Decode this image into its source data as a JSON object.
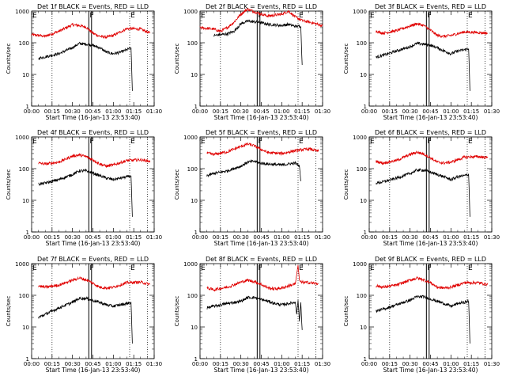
{
  "chart_data": [
    {
      "type": "line",
      "title": "Det 1f BLACK = Events, RED = LLD",
      "xlabel": "Start Time (16-Jan-13 23:53:40)",
      "ylabel": "Counts/sec",
      "scale": "log",
      "xlim": [
        "00:00",
        "01:30"
      ],
      "ylim": [
        1,
        1000
      ],
      "xticks": [
        "00:00",
        "00:15",
        "00:30",
        "00:45",
        "01:00",
        "01:15",
        "01:30"
      ],
      "yticks": [
        "1",
        "10",
        "100",
        "1000"
      ],
      "markers": [
        {
          "label": "E",
          "x": "00:00"
        },
        {
          "label": "F",
          "x": "00:42"
        },
        {
          "label": "E",
          "x": "01:12"
        }
      ],
      "dotted_lines": [
        "00:15",
        "01:12",
        "01:25"
      ],
      "solid_lines": [
        "00:42",
        "00:44"
      ],
      "series": [
        {
          "color": "red",
          "x": [
            "00:00",
            "00:10",
            "00:20",
            "00:30",
            "00:35",
            "00:40",
            "00:45",
            "00:50",
            "00:55",
            "01:00",
            "01:10",
            "01:20",
            "01:27"
          ],
          "y": [
            180,
            160,
            230,
            370,
            350,
            310,
            200,
            160,
            150,
            170,
            280,
            270,
            200
          ]
        },
        {
          "color": "black",
          "x": [
            "00:05",
            "00:10",
            "00:20",
            "00:30",
            "00:35",
            "00:40",
            "00:44",
            "00:50",
            "00:55",
            "01:00",
            "01:05",
            "01:10",
            "01:13",
            "01:14"
          ],
          "y": [
            32,
            36,
            45,
            70,
            95,
            90,
            85,
            70,
            50,
            45,
            50,
            60,
            70,
            3
          ]
        }
      ]
    },
    {
      "type": "line",
      "title": "Det 2f BLACK = Events, RED = LLD",
      "xlabel": "Start Time (16-Jan-13 23:53:40)",
      "ylabel": "Counts/sec",
      "scale": "log",
      "xlim": [
        "00:00",
        "01:30"
      ],
      "ylim": [
        1,
        1000
      ],
      "xticks": [
        "00:00",
        "00:15",
        "00:30",
        "00:45",
        "01:00",
        "01:15",
        "01:30"
      ],
      "yticks": [
        "1",
        "10",
        "100",
        "1000"
      ],
      "markers": [
        {
          "label": "E",
          "x": "00:00"
        },
        {
          "label": "F",
          "x": "00:42"
        },
        {
          "label": "E",
          "x": "01:12"
        }
      ],
      "dotted_lines": [
        "00:15",
        "01:12",
        "01:25"
      ],
      "solid_lines": [
        "00:42",
        "00:44"
      ],
      "series": [
        {
          "color": "red",
          "x": [
            "00:00",
            "00:10",
            "00:15",
            "00:20",
            "00:25",
            "00:30",
            "00:35",
            "00:40",
            "00:45",
            "00:50",
            "01:00",
            "01:05",
            "01:10",
            "01:15",
            "01:20",
            "01:25",
            "01:30"
          ],
          "y": [
            300,
            270,
            230,
            300,
            450,
            800,
            1150,
            950,
            800,
            700,
            800,
            1000,
            650,
            500,
            450,
            400,
            340
          ]
        },
        {
          "color": "black",
          "x": [
            "00:10",
            "00:15",
            "00:20",
            "00:25",
            "00:30",
            "00:35",
            "00:40",
            "00:45",
            "00:50",
            "01:00",
            "01:05",
            "01:10",
            "01:14",
            "01:15"
          ],
          "y": [
            170,
            180,
            190,
            230,
            400,
            480,
            460,
            430,
            380,
            350,
            380,
            330,
            330,
            20
          ]
        }
      ]
    },
    {
      "type": "line",
      "title": "Det 3f BLACK = Events, RED = LLD",
      "xlabel": "Start Time (16-Jan-13 23:53:40)",
      "ylabel": "Counts/sec",
      "scale": "log",
      "xlim": [
        "00:00",
        "01:30"
      ],
      "ylim": [
        1,
        1000
      ],
      "xticks": [
        "00:00",
        "00:15",
        "00:30",
        "00:45",
        "01:00",
        "01:15",
        "01:30"
      ],
      "yticks": [
        "1",
        "10",
        "100",
        "1000"
      ],
      "markers": [
        {
          "label": "E",
          "x": "00:00"
        },
        {
          "label": "F",
          "x": "00:42"
        },
        {
          "label": "E",
          "x": "01:12"
        }
      ],
      "dotted_lines": [
        "00:15",
        "01:12",
        "01:25"
      ],
      "solid_lines": [
        "00:42",
        "00:44"
      ],
      "series": [
        {
          "color": "red",
          "x": [
            "00:05",
            "00:10",
            "00:20",
            "00:30",
            "00:35",
            "00:40",
            "00:45",
            "00:50",
            "00:55",
            "01:00",
            "01:10",
            "01:20",
            "01:27"
          ],
          "y": [
            230,
            200,
            240,
            340,
            400,
            350,
            250,
            170,
            160,
            170,
            220,
            210,
            200
          ]
        },
        {
          "color": "black",
          "x": [
            "00:05",
            "00:10",
            "00:20",
            "00:30",
            "00:35",
            "00:40",
            "00:44",
            "00:50",
            "00:55",
            "01:00",
            "01:05",
            "01:10",
            "01:13",
            "01:14"
          ],
          "y": [
            35,
            40,
            55,
            75,
            95,
            90,
            85,
            70,
            55,
            45,
            55,
            60,
            65,
            3
          ]
        }
      ]
    },
    {
      "type": "line",
      "title": "Det 4f BLACK = Events, RED = LLD",
      "xlabel": "Start Time (16-Jan-13 23:53:40)",
      "ylabel": "Counts/sec",
      "scale": "log",
      "xlim": [
        "00:00",
        "01:30"
      ],
      "ylim": [
        1,
        1000
      ],
      "xticks": [
        "00:00",
        "00:15",
        "00:30",
        "00:45",
        "01:00",
        "01:15",
        "01:30"
      ],
      "yticks": [
        "1",
        "10",
        "100",
        "1000"
      ],
      "markers": [
        {
          "label": "E",
          "x": "00:00"
        },
        {
          "label": "F",
          "x": "00:42"
        },
        {
          "label": "E",
          "x": "01:12"
        }
      ],
      "dotted_lines": [
        "00:15",
        "01:12",
        "01:25"
      ],
      "solid_lines": [
        "00:42",
        "00:44"
      ],
      "series": [
        {
          "color": "red",
          "x": [
            "00:05",
            "00:10",
            "00:20",
            "00:30",
            "00:35",
            "00:40",
            "00:45",
            "00:50",
            "00:55",
            "01:00",
            "01:10",
            "01:20",
            "01:27"
          ],
          "y": [
            150,
            140,
            160,
            250,
            270,
            240,
            190,
            140,
            120,
            130,
            180,
            190,
            170
          ]
        },
        {
          "color": "black",
          "x": [
            "00:05",
            "00:10",
            "00:20",
            "00:30",
            "00:35",
            "00:40",
            "00:44",
            "00:50",
            "00:55",
            "01:00",
            "01:05",
            "01:10",
            "01:13",
            "01:14"
          ],
          "y": [
            32,
            35,
            45,
            65,
            85,
            85,
            75,
            60,
            50,
            45,
            50,
            55,
            60,
            3
          ]
        }
      ]
    },
    {
      "type": "line",
      "title": "Det 5f BLACK = Events, RED = LLD",
      "xlabel": "Start Time (16-Jan-13 23:53:40)",
      "ylabel": "Counts/sec",
      "scale": "log",
      "xlim": [
        "00:00",
        "01:30"
      ],
      "ylim": [
        1,
        1000
      ],
      "xticks": [
        "00:00",
        "00:15",
        "00:30",
        "00:45",
        "01:00",
        "01:15",
        "01:30"
      ],
      "yticks": [
        "1",
        "10",
        "100",
        "1000"
      ],
      "markers": [
        {
          "label": "E",
          "x": "00:00"
        },
        {
          "label": "F",
          "x": "00:42"
        },
        {
          "label": "E",
          "x": "01:12"
        }
      ],
      "dotted_lines": [
        "00:15",
        "01:12",
        "01:25"
      ],
      "solid_lines": [
        "00:42",
        "00:44"
      ],
      "series": [
        {
          "color": "red",
          "x": [
            "00:05",
            "00:10",
            "00:20",
            "00:30",
            "00:35",
            "00:40",
            "00:45",
            "00:50",
            "01:00",
            "01:10",
            "01:20",
            "01:27"
          ],
          "y": [
            310,
            280,
            340,
            500,
            600,
            520,
            400,
            320,
            300,
            370,
            420,
            350
          ]
        },
        {
          "color": "black",
          "x": [
            "00:05",
            "00:10",
            "00:20",
            "00:30",
            "00:35",
            "00:40",
            "00:44",
            "00:50",
            "01:00",
            "01:05",
            "01:10",
            "01:13",
            "01:14"
          ],
          "y": [
            60,
            70,
            85,
            120,
            160,
            170,
            150,
            140,
            130,
            140,
            150,
            120,
            40
          ]
        }
      ]
    },
    {
      "type": "line",
      "title": "Det 6f BLACK = Events, RED = LLD",
      "xlabel": "Start Time (16-Jan-13 23:53:40)",
      "ylabel": "Counts/sec",
      "scale": "log",
      "xlim": [
        "00:00",
        "01:30"
      ],
      "ylim": [
        1,
        1000
      ],
      "xticks": [
        "00:00",
        "00:15",
        "00:30",
        "00:45",
        "01:00",
        "01:15",
        "01:30"
      ],
      "yticks": [
        "1",
        "10",
        "100",
        "1000"
      ],
      "markers": [
        {
          "label": "E",
          "x": "00:00"
        },
        {
          "label": "F",
          "x": "00:42"
        },
        {
          "label": "E",
          "x": "01:12"
        }
      ],
      "dotted_lines": [
        "00:15",
        "01:12",
        "01:25"
      ],
      "solid_lines": [
        "00:42",
        "00:44"
      ],
      "series": [
        {
          "color": "red",
          "x": [
            "00:05",
            "00:10",
            "00:20",
            "00:30",
            "00:35",
            "00:40",
            "00:45",
            "00:50",
            "00:55",
            "01:00",
            "01:10",
            "01:20",
            "01:27"
          ],
          "y": [
            170,
            150,
            180,
            280,
            330,
            290,
            220,
            160,
            150,
            160,
            230,
            240,
            220
          ]
        },
        {
          "color": "black",
          "x": [
            "00:05",
            "00:10",
            "00:20",
            "00:30",
            "00:35",
            "00:40",
            "00:44",
            "00:50",
            "00:55",
            "01:00",
            "01:05",
            "01:10",
            "01:13",
            "01:14"
          ],
          "y": [
            35,
            38,
            50,
            70,
            90,
            90,
            80,
            65,
            55,
            45,
            55,
            60,
            65,
            3
          ]
        }
      ]
    },
    {
      "type": "line",
      "title": "Det 7f BLACK = Events, RED = LLD",
      "xlabel": "Start Time (16-Jan-13 23:53:40)",
      "ylabel": "Counts/sec",
      "scale": "log",
      "xlim": [
        "00:00",
        "01:30"
      ],
      "ylim": [
        1,
        1000
      ],
      "xticks": [
        "00:00",
        "00:15",
        "00:30",
        "00:45",
        "01:00",
        "01:15",
        "01:30"
      ],
      "yticks": [
        "1",
        "10",
        "100",
        "1000"
      ],
      "markers": [
        {
          "label": "E",
          "x": "00:00"
        },
        {
          "label": "F",
          "x": "00:42"
        },
        {
          "label": "E",
          "x": "01:12"
        }
      ],
      "dotted_lines": [
        "00:15",
        "01:12",
        "01:25"
      ],
      "solid_lines": [
        "00:42",
        "00:44"
      ],
      "series": [
        {
          "color": "red",
          "x": [
            "00:05",
            "00:10",
            "00:20",
            "00:30",
            "00:35",
            "00:40",
            "00:45",
            "00:50",
            "00:55",
            "01:00",
            "01:10",
            "01:20",
            "01:27"
          ],
          "y": [
            200,
            180,
            210,
            300,
            350,
            310,
            240,
            180,
            170,
            180,
            250,
            260,
            220
          ]
        },
        {
          "color": "black",
          "x": [
            "00:05",
            "00:10",
            "00:20",
            "00:30",
            "00:35",
            "00:40",
            "00:44",
            "00:50",
            "00:55",
            "01:00",
            "01:05",
            "01:10",
            "01:13",
            "01:14"
          ],
          "y": [
            20,
            25,
            40,
            60,
            80,
            80,
            70,
            60,
            50,
            45,
            50,
            55,
            60,
            3
          ]
        }
      ]
    },
    {
      "type": "line",
      "title": "Det 8f BLACK = Events, RED = LLD",
      "xlabel": "Start Time (16-Jan-13 23:53:40)",
      "ylabel": "Counts/sec",
      "scale": "log",
      "xlim": [
        "00:00",
        "01:30"
      ],
      "ylim": [
        1,
        1000
      ],
      "xticks": [
        "00:00",
        "00:15",
        "00:30",
        "00:45",
        "01:00",
        "01:15",
        "01:30"
      ],
      "yticks": [
        "1",
        "10",
        "100",
        "1000"
      ],
      "markers": [
        {
          "label": "E",
          "x": "00:00"
        },
        {
          "label": "F",
          "x": "00:42"
        },
        {
          "label": "E",
          "x": "01:12"
        }
      ],
      "dotted_lines": [
        "00:15",
        "01:12",
        "01:25"
      ],
      "solid_lines": [
        "00:42",
        "00:44"
      ],
      "series": [
        {
          "color": "red",
          "x": [
            "00:05",
            "00:10",
            "00:20",
            "00:30",
            "00:35",
            "00:40",
            "00:45",
            "00:50",
            "00:55",
            "01:00",
            "01:10",
            "01:12",
            "01:13",
            "01:14",
            "01:20",
            "01:27"
          ],
          "y": [
            170,
            150,
            180,
            260,
            300,
            270,
            220,
            170,
            160,
            170,
            230,
            900,
            300,
            260,
            250,
            230
          ]
        },
        {
          "color": "black",
          "x": [
            "00:05",
            "00:10",
            "00:20",
            "00:30",
            "00:35",
            "00:40",
            "00:44",
            "00:50",
            "00:55",
            "01:00",
            "01:05",
            "01:10",
            "01:11",
            "01:12",
            "01:13",
            "01:14",
            "01:15"
          ],
          "y": [
            40,
            45,
            55,
            65,
            85,
            85,
            75,
            65,
            55,
            50,
            55,
            60,
            25,
            70,
            15,
            60,
            8
          ]
        }
      ]
    },
    {
      "type": "line",
      "title": "Det 9f BLACK = Events, RED = LLD",
      "xlabel": "Start Time (16-Jan-13 23:53:40)",
      "ylabel": "Counts/sec",
      "scale": "log",
      "xlim": [
        "00:00",
        "01:30"
      ],
      "ylim": [
        1,
        1000
      ],
      "xticks": [
        "00:00",
        "00:15",
        "00:30",
        "00:45",
        "01:00",
        "01:15",
        "01:30"
      ],
      "yticks": [
        "1",
        "10",
        "100",
        "1000"
      ],
      "markers": [
        {
          "label": "E",
          "x": "00:00"
        },
        {
          "label": "F",
          "x": "00:42"
        },
        {
          "label": "E",
          "x": "01:12"
        }
      ],
      "dotted_lines": [
        "00:15",
        "01:12",
        "01:25"
      ],
      "solid_lines": [
        "00:42",
        "00:44"
      ],
      "series": [
        {
          "color": "red",
          "x": [
            "00:05",
            "00:10",
            "00:20",
            "00:30",
            "00:35",
            "00:40",
            "00:45",
            "00:50",
            "00:55",
            "01:00",
            "01:10",
            "01:20",
            "01:27"
          ],
          "y": [
            200,
            180,
            210,
            300,
            350,
            310,
            250,
            180,
            170,
            180,
            250,
            250,
            220
          ]
        },
        {
          "color": "black",
          "x": [
            "00:05",
            "00:10",
            "00:20",
            "00:30",
            "00:35",
            "00:40",
            "00:44",
            "00:50",
            "00:55",
            "01:00",
            "01:05",
            "01:10",
            "01:13",
            "01:14"
          ],
          "y": [
            32,
            36,
            50,
            70,
            90,
            90,
            80,
            65,
            55,
            45,
            55,
            60,
            65,
            3
          ]
        }
      ]
    }
  ]
}
